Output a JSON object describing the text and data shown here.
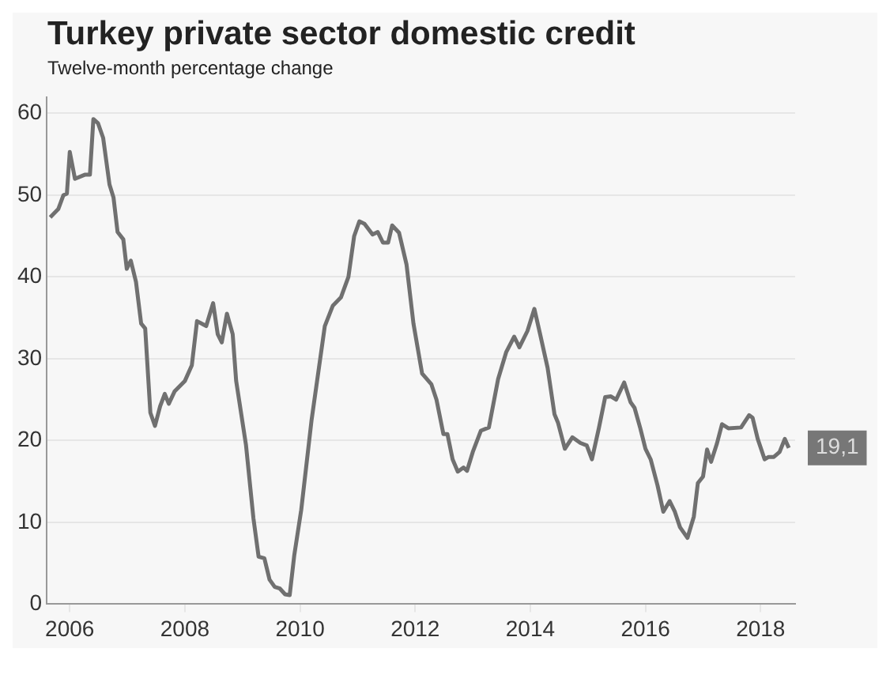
{
  "chart_data": {
    "type": "line",
    "title": "Turkey private sector domestic credit",
    "subtitle": "Twelve-month percentage change",
    "series": [
      {
        "color": "#707070",
        "x": [
          2005.66,
          2005.8,
          2005.89,
          2005.95,
          2006.0,
          2006.09,
          2006.26,
          2006.35,
          2006.41,
          2006.49,
          2006.58,
          2006.69,
          2006.76,
          2006.83,
          2006.93,
          2006.99,
          2007.06,
          2007.15,
          2007.24,
          2007.31,
          2007.4,
          2007.48,
          2007.57,
          2007.65,
          2007.72,
          2007.82,
          2008.0,
          2008.12,
          2008.21,
          2008.37,
          2008.49,
          2008.57,
          2008.64,
          2008.73,
          2008.83,
          2008.89,
          2009.06,
          2009.19,
          2009.28,
          2009.38,
          2009.47,
          2009.56,
          2009.65,
          2009.74,
          2009.82,
          2009.9,
          2010.02,
          2010.2,
          2010.43,
          2010.57,
          2010.71,
          2010.84,
          2010.94,
          2011.03,
          2011.12,
          2011.26,
          2011.35,
          2011.44,
          2011.53,
          2011.6,
          2011.72,
          2011.85,
          2011.97,
          2012.12,
          2012.28,
          2012.37,
          2012.49,
          2012.56,
          2012.65,
          2012.74,
          2012.84,
          2012.9,
          2013.0,
          2013.14,
          2013.28,
          2013.44,
          2013.58,
          2013.72,
          2013.81,
          2013.95,
          2014.07,
          2014.17,
          2014.3,
          2014.42,
          2014.48,
          2014.6,
          2014.73,
          2014.87,
          2014.98,
          2015.07,
          2015.19,
          2015.3,
          2015.4,
          2015.49,
          2015.63,
          2015.74,
          2015.81,
          2015.91,
          2016.0,
          2016.09,
          2016.21,
          2016.31,
          2016.42,
          2016.51,
          2016.6,
          2016.73,
          2016.84,
          2016.91,
          2017.0,
          2017.07,
          2017.14,
          2017.24,
          2017.33,
          2017.44,
          2017.66,
          2017.8,
          2017.86,
          2017.95,
          2018.07,
          2018.14,
          2018.23,
          2018.33,
          2018.42,
          2018.49
        ],
        "values": [
          47.3,
          48.3,
          50,
          50.2,
          55.3,
          52,
          52.5,
          52.5,
          59.3,
          58.8,
          57,
          51.3,
          49.7,
          45.5,
          44.6,
          41,
          42,
          39.4,
          34.3,
          33.7,
          23.4,
          21.8,
          24.2,
          25.7,
          24.5,
          26,
          27.3,
          29.2,
          34.6,
          34,
          36.8,
          33,
          32,
          35.5,
          33,
          27.3,
          19.5,
          10.5,
          5.8,
          5.6,
          3,
          2.1,
          1.9,
          1.2,
          1.1,
          6,
          11.5,
          22.5,
          34,
          36.5,
          37.5,
          40,
          45,
          46.8,
          46.5,
          45.2,
          45.5,
          44.2,
          44.2,
          46.3,
          45.4,
          41.5,
          34.3,
          28.2,
          26.9,
          25,
          20.8,
          20.8,
          17.7,
          16.2,
          16.7,
          16.3,
          18.6,
          21.2,
          21.6,
          27.5,
          30.8,
          32.7,
          31.4,
          33.4,
          36.1,
          33,
          28.9,
          23.2,
          22.2,
          19,
          20.4,
          19.7,
          19.4,
          17.7,
          21.5,
          25.3,
          25.4,
          25,
          27.1,
          24.7,
          24,
          21.5,
          19,
          17.7,
          14.5,
          11.3,
          12.6,
          11.3,
          9.4,
          8.1,
          10.7,
          14.8,
          15.6,
          18.9,
          17.4,
          19.6,
          22,
          21.5,
          21.6,
          23.1,
          22.8,
          20.2,
          17.7,
          18,
          18,
          18.6,
          20.2,
          19.1
        ]
      }
    ],
    "xlim": [
      2005.6,
      2018.6
    ],
    "xticks": [
      2006,
      2008,
      2010,
      2012,
      2014,
      2016,
      2018
    ],
    "ylim": [
      0,
      62
    ],
    "yticks": [
      0,
      10,
      20,
      30,
      40,
      50,
      60
    ],
    "grid": "y",
    "legend": false,
    "marker": "none",
    "line_style": "solid",
    "annotations": [
      {
        "text": "19,1",
        "x": 2018.49,
        "y": 19.1
      }
    ]
  }
}
